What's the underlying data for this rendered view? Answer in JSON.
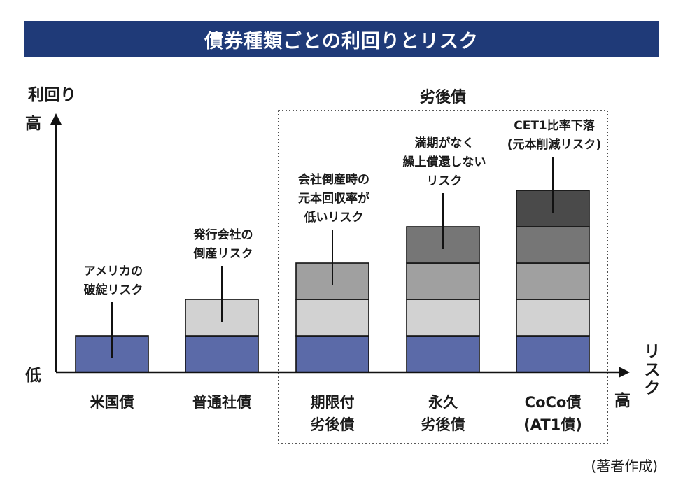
{
  "title": "債券種類ごとの利回りとリスク",
  "colors": {
    "title_bg": "#1f3a78",
    "layer_1": "#5b6aa8",
    "layer_2": "#d2d2d2",
    "layer_3": "#a0a0a0",
    "layer_4": "#767676",
    "layer_5": "#4a4a4a"
  },
  "chart_data": {
    "type": "bar",
    "stacked": true,
    "title": "債券種類ごとの利回りとリスク",
    "ylabel": "利回り",
    "y_high": "高",
    "y_low": "低",
    "xlabel": "リスク",
    "x_high": "高",
    "categories": [
      [
        "米国債"
      ],
      [
        "普通社債"
      ],
      [
        "期限付",
        "劣後債"
      ],
      [
        "永久",
        "劣後債"
      ],
      [
        "CoCo債",
        "(AT1債)"
      ]
    ],
    "layers": [
      {
        "name": "アメリカの破綻リスク",
        "values": [
          1,
          1,
          1,
          1,
          1
        ]
      },
      {
        "name": "発行会社の倒産リスク",
        "values": [
          0,
          1,
          1,
          1,
          1
        ]
      },
      {
        "name": "会社倒産時の元本回収率が低いリスク",
        "values": [
          0,
          0,
          1,
          1,
          1
        ]
      },
      {
        "name": "満期がなく繰上償還しないリスク",
        "values": [
          0,
          0,
          0,
          1,
          1
        ]
      },
      {
        "name": "CET1比率下落(元本削減リスク)",
        "values": [
          0,
          0,
          0,
          0,
          1
        ]
      }
    ],
    "annotations": [
      {
        "category_index": 0,
        "layer_index": 0,
        "lines": [
          "アメリカの",
          "破綻リスク"
        ]
      },
      {
        "category_index": 1,
        "layer_index": 1,
        "lines": [
          "発行会社の",
          "倒産リスク"
        ]
      },
      {
        "category_index": 2,
        "layer_index": 2,
        "lines": [
          "会社倒産時の",
          "元本回収率が",
          "低いリスク"
        ]
      },
      {
        "category_index": 3,
        "layer_index": 3,
        "lines": [
          "満期がなく",
          "繰上償還しない",
          "リスク"
        ]
      },
      {
        "category_index": 4,
        "layer_index": 4,
        "lines": [
          "CET1比率下落",
          "(元本削減リスク)"
        ]
      }
    ],
    "group": {
      "label": "劣後債",
      "from_index": 2,
      "to_index": 4
    }
  },
  "credit": "(著者作成)"
}
